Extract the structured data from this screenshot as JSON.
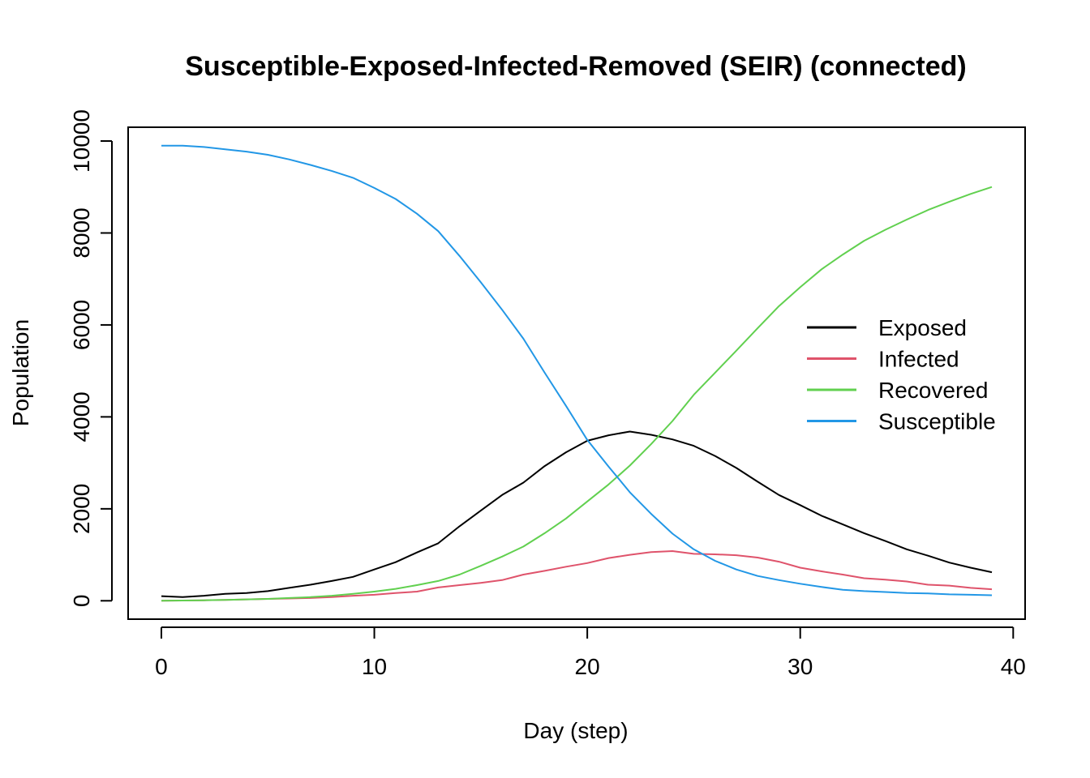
{
  "chart_data": {
    "type": "line",
    "title": "Susceptible-Exposed-Infected-Removed (SEIR) (connected)",
    "xlabel": "Day (step)",
    "ylabel": "Population",
    "xlim": [
      -1.56,
      40.56
    ],
    "ylim": [
      -400,
      10300
    ],
    "xticks": [
      0,
      10,
      20,
      30,
      40
    ],
    "yticks": [
      0,
      2000,
      4000,
      6000,
      8000,
      10000
    ],
    "grid": false,
    "legend_position": "right",
    "x": [
      0,
      1,
      2,
      3,
      4,
      5,
      6,
      7,
      8,
      9,
      10,
      11,
      12,
      13,
      14,
      15,
      16,
      17,
      18,
      19,
      20,
      21,
      22,
      23,
      24,
      25,
      26,
      27,
      28,
      29,
      30,
      31,
      32,
      33,
      34,
      35,
      36,
      37,
      38,
      39
    ],
    "series": [
      {
        "name": "Exposed",
        "color": "#000000",
        "values": [
          100,
          80,
          110,
          150,
          170,
          210,
          280,
          350,
          430,
          520,
          680,
          840,
          1050,
          1250,
          1620,
          1960,
          2300,
          2570,
          2930,
          3230,
          3480,
          3600,
          3680,
          3610,
          3510,
          3370,
          3150,
          2890,
          2590,
          2300,
          2080,
          1850,
          1660,
          1470,
          1300,
          1120,
          980,
          830,
          720,
          620
        ]
      },
      {
        "name": "Infected",
        "color": "#DF536B",
        "values": [
          0,
          5,
          10,
          20,
          30,
          40,
          50,
          60,
          80,
          110,
          130,
          170,
          200,
          290,
          340,
          390,
          450,
          570,
          650,
          740,
          820,
          930,
          1000,
          1060,
          1080,
          1020,
          1010,
          990,
          940,
          850,
          720,
          640,
          570,
          490,
          460,
          420,
          350,
          330,
          280,
          250
        ]
      },
      {
        "name": "Recovered",
        "color": "#61D04F",
        "values": [
          0,
          5,
          10,
          20,
          30,
          40,
          60,
          80,
          110,
          150,
          200,
          260,
          340,
          430,
          570,
          760,
          960,
          1180,
          1470,
          1790,
          2160,
          2530,
          2940,
          3410,
          3910,
          4480,
          4960,
          5440,
          5930,
          6410,
          6820,
          7210,
          7530,
          7830,
          8070,
          8290,
          8500,
          8680,
          8850,
          9000
        ]
      },
      {
        "name": "Susceptible",
        "color": "#2297E6",
        "values": [
          9900,
          9900,
          9870,
          9820,
          9770,
          9700,
          9600,
          9480,
          9350,
          9200,
          8980,
          8740,
          8420,
          8040,
          7500,
          6930,
          6330,
          5700,
          4960,
          4240,
          3500,
          2920,
          2360,
          1890,
          1460,
          1120,
          870,
          680,
          540,
          450,
          370,
          300,
          240,
          210,
          190,
          170,
          160,
          140,
          130,
          120
        ]
      }
    ]
  }
}
